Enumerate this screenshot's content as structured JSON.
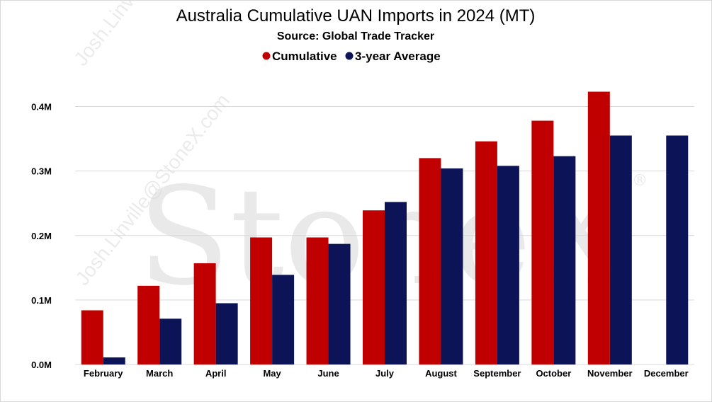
{
  "chart_data": {
    "type": "bar",
    "title": "Australia Cumulative UAN Imports in 2024 (MT)",
    "subtitle": "Source: Global Trade Tracker",
    "categories": [
      "February",
      "March",
      "April",
      "May",
      "June",
      "July",
      "August",
      "September",
      "October",
      "November",
      "December"
    ],
    "series": [
      {
        "name": "Cumulative",
        "color": "#c00000",
        "values": [
          84000,
          122000,
          157000,
          197000,
          197000,
          239000,
          320000,
          346000,
          378000,
          423000,
          null
        ]
      },
      {
        "name": "3-year Average",
        "color": "#0c1457",
        "values": [
          11000,
          71000,
          95000,
          139000,
          187000,
          252000,
          304000,
          308000,
          323000,
          355000,
          355000
        ]
      }
    ],
    "yticks": [
      {
        "value": 0,
        "label": "0.0M"
      },
      {
        "value": 100000,
        "label": "0.1M"
      },
      {
        "value": 200000,
        "label": "0.2M"
      },
      {
        "value": 300000,
        "label": "0.3M"
      },
      {
        "value": 400000,
        "label": "0.4M"
      }
    ],
    "ylim": [
      0,
      450000
    ],
    "grid": true,
    "legend_position": "top-center"
  },
  "watermark": {
    "brand": "StoneX",
    "registered": "®",
    "email": "Josh.Linville@StoneX.com"
  }
}
